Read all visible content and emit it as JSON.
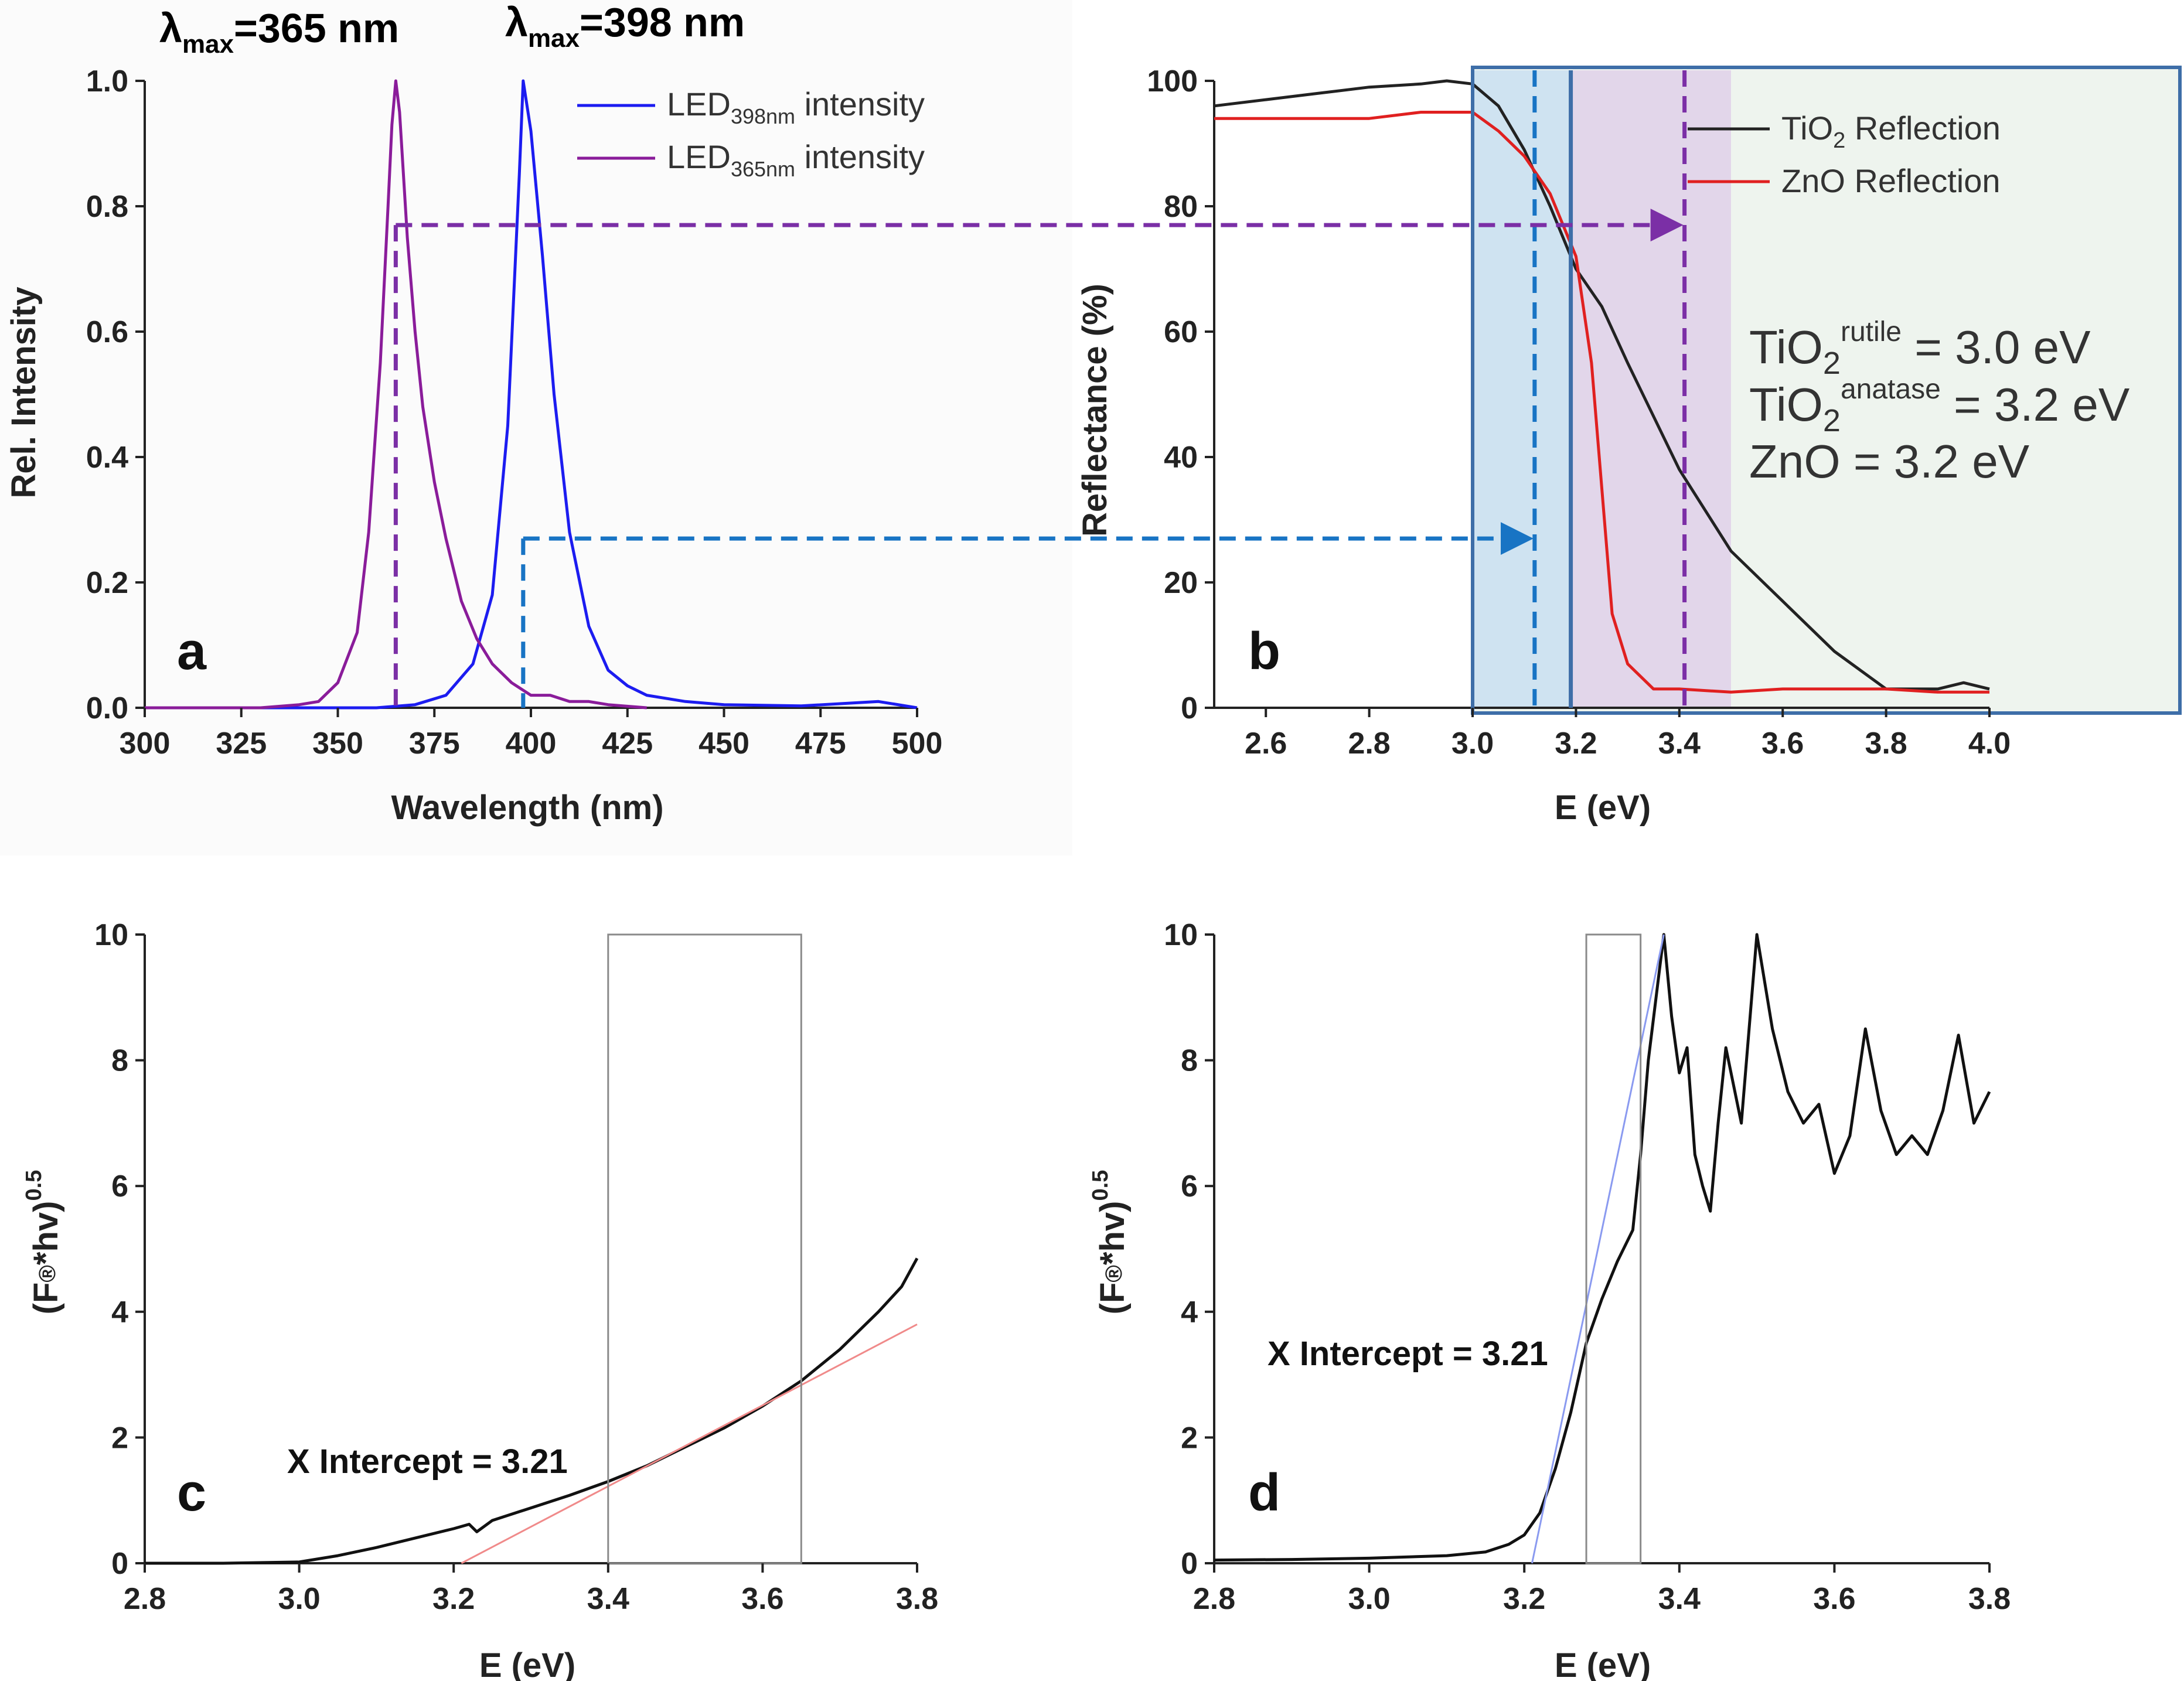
{
  "header": {
    "lambda_violet": "λmax=365 nm",
    "lambda_violet_a": "λ",
    "lambda_violet_b": "max",
    "lambda_violet_c": "=365 nm",
    "lambda_blue_a": "λ",
    "lambda_blue_b": "max",
    "lambda_blue_c": "=398 nm"
  },
  "colors": {
    "violet": "#7b2fa6",
    "blue": "#1874c4",
    "led398": "#1c1cf0",
    "led365": "#8a1c9a",
    "tio2": "#222222",
    "zno": "#e02020",
    "fit_c": "#f08a8a",
    "fit_d": "#8a9af0",
    "band_blue": "#cfe3f1",
    "band_violet": "#e2d6ea",
    "box_bg": "#eef4ee",
    "box_frame": "#3e6ea8"
  },
  "chart_data": [
    {
      "panel": "a",
      "type": "line",
      "xlabel": "Wavelength (nm)",
      "ylabel": "Rel. Intensity",
      "xlim": [
        300,
        500
      ],
      "ylim": [
        0.0,
        1.0
      ],
      "xticks": [
        "300",
        "325",
        "350",
        "375",
        "400",
        "425",
        "450",
        "475",
        "500"
      ],
      "yticks": [
        "0.0",
        "0.2",
        "0.4",
        "0.6",
        "0.8",
        "1.0"
      ],
      "legend": {
        "led398_a": "LED",
        "led398_b": "398nm",
        "led398_c": " intensity",
        "led365_a": "LED",
        "led365_b": "365nm",
        "led365_c": " intensity"
      },
      "series": [
        {
          "name": "LED398nm intensity",
          "color": "#1c1cf0",
          "x": [
            300,
            360,
            370,
            378,
            385,
            390,
            394,
            397,
            398,
            400,
            403,
            406,
            410,
            415,
            420,
            425,
            430,
            440,
            450,
            470,
            490,
            500
          ],
          "y": [
            0.0,
            0.0,
            0.005,
            0.02,
            0.07,
            0.18,
            0.45,
            0.85,
            1.0,
            0.92,
            0.72,
            0.5,
            0.28,
            0.13,
            0.06,
            0.035,
            0.02,
            0.01,
            0.005,
            0.003,
            0.01,
            0.0
          ]
        },
        {
          "name": "LED365nm intensity",
          "color": "#8a1c9a",
          "x": [
            300,
            330,
            340,
            345,
            350,
            355,
            358,
            361,
            363,
            364,
            365,
            366,
            368,
            370,
            372,
            375,
            378,
            382,
            386,
            390,
            395,
            400,
            405,
            410,
            415,
            420,
            430
          ],
          "y": [
            0.0,
            0.0,
            0.005,
            0.01,
            0.04,
            0.12,
            0.28,
            0.55,
            0.8,
            0.93,
            1.0,
            0.95,
            0.75,
            0.6,
            0.48,
            0.36,
            0.27,
            0.17,
            0.11,
            0.07,
            0.04,
            0.02,
            0.02,
            0.01,
            0.01,
            0.005,
            0.0
          ]
        }
      ],
      "markers": [
        {
          "x": 365,
          "y_top": 0.77,
          "color": "#7b2fa6"
        },
        {
          "x": 398,
          "y_top": 0.27,
          "color": "#1874c4"
        }
      ]
    },
    {
      "panel": "b",
      "type": "line",
      "xlabel": "E (eV)",
      "ylabel": "Reflectance (%)",
      "xlim": [
        2.5,
        4.0
      ],
      "ylim": [
        0,
        100
      ],
      "xticks": [
        "2.6",
        "2.8",
        "3.0",
        "3.2",
        "3.4",
        "3.6",
        "3.8",
        "4.0"
      ],
      "yticks": [
        "0",
        "20",
        "40",
        "60",
        "80",
        "100"
      ],
      "legend": {
        "tio2_a": "TiO",
        "tio2_b": "2",
        "tio2_c": " Reflection",
        "zno": "ZnO Reflection"
      },
      "band_gaps": {
        "rutile_a": "TiO",
        "rutile_b": "2",
        "rutile_c": "rutile",
        "rutile_d": " = 3.0 eV",
        "anatase_a": "TiO",
        "anatase_b": "2",
        "anatase_c": "anatase",
        "anatase_d": " = 3.2 eV",
        "zno": "ZnO = 3.2 eV"
      },
      "series": [
        {
          "name": "TiO2 Reflection",
          "color": "#222222",
          "x": [
            2.5,
            2.6,
            2.7,
            2.8,
            2.9,
            2.95,
            3.0,
            3.05,
            3.1,
            3.15,
            3.2,
            3.25,
            3.3,
            3.4,
            3.5,
            3.6,
            3.7,
            3.8,
            3.85,
            3.9,
            3.95,
            4.0
          ],
          "y": [
            96,
            97,
            98,
            99,
            99.5,
            100,
            99.5,
            96,
            89,
            80,
            70,
            64,
            55,
            38,
            25,
            17,
            9,
            3,
            3,
            3,
            4,
            3
          ]
        },
        {
          "name": "ZnO Reflection",
          "color": "#e02020",
          "x": [
            2.5,
            2.6,
            2.7,
            2.8,
            2.9,
            3.0,
            3.05,
            3.1,
            3.15,
            3.2,
            3.23,
            3.25,
            3.27,
            3.3,
            3.35,
            3.4,
            3.5,
            3.6,
            3.7,
            3.8,
            3.9,
            4.0
          ],
          "y": [
            94,
            94,
            94,
            94,
            95,
            95,
            92,
            88,
            82,
            72,
            55,
            35,
            15,
            7,
            3,
            3,
            2.5,
            3,
            3,
            3,
            2.5,
            2.5
          ]
        }
      ],
      "markers": [
        {
          "x": 3.12,
          "color": "#1874c4",
          "style": "dashed"
        },
        {
          "x": 3.19,
          "color": "#3e6ea8",
          "style": "solid"
        },
        {
          "x": 3.41,
          "color": "#7b2fa6",
          "style": "dashed"
        }
      ],
      "bands": [
        {
          "from": 3.0,
          "to": 3.19,
          "color": "#cfe3f1"
        },
        {
          "from": 3.19,
          "to": 3.5,
          "color": "#e2d6ea"
        }
      ]
    },
    {
      "panel": "c",
      "type": "line",
      "xlabel": "E (eV)",
      "ylabel": "(F®*hv)0.5",
      "ylabel_a": "(F",
      "ylabel_b": "®",
      "ylabel_c": "*hv)",
      "ylabel_d": "0.5",
      "xlim": [
        2.8,
        3.8
      ],
      "ylim": [
        0,
        10
      ],
      "xticks": [
        "2.8",
        "3.0",
        "3.2",
        "3.4",
        "3.6",
        "3.8"
      ],
      "yticks": [
        "0",
        "2",
        "4",
        "6",
        "8",
        "10"
      ],
      "annotation": "X Intercept = 3.21",
      "fit_window": [
        3.4,
        3.65
      ],
      "series": [
        {
          "name": "",
          "color": "#111111",
          "x": [
            2.8,
            2.9,
            3.0,
            3.05,
            3.1,
            3.15,
            3.2,
            3.22,
            3.23,
            3.25,
            3.3,
            3.35,
            3.4,
            3.45,
            3.5,
            3.55,
            3.6,
            3.65,
            3.7,
            3.75,
            3.78,
            3.8
          ],
          "y": [
            0.0,
            0.0,
            0.02,
            0.12,
            0.25,
            0.4,
            0.55,
            0.62,
            0.5,
            0.68,
            0.88,
            1.08,
            1.3,
            1.55,
            1.85,
            2.15,
            2.5,
            2.9,
            3.4,
            4.0,
            4.4,
            4.85
          ]
        },
        {
          "name": "",
          "color": "#f08a8a",
          "x": [
            3.21,
            3.8
          ],
          "y": [
            0.0,
            3.8
          ]
        }
      ]
    },
    {
      "panel": "d",
      "type": "line",
      "xlabel": "E (eV)",
      "ylabel": "(F®*hv)0.5",
      "ylabel_a": "(F",
      "ylabel_b": "®",
      "ylabel_c": "*hv)",
      "ylabel_d": "0.5",
      "xlim": [
        2.8,
        3.8
      ],
      "ylim": [
        0,
        10
      ],
      "xticks": [
        "2.8",
        "3.0",
        "3.2",
        "3.4",
        "3.6",
        "3.8"
      ],
      "yticks": [
        "0",
        "2",
        "4",
        "6",
        "8",
        "10"
      ],
      "annotation": "X Intercept = 3.21",
      "fit_window": [
        3.28,
        3.35
      ],
      "series": [
        {
          "name": "",
          "color": "#111111",
          "x": [
            2.8,
            2.9,
            3.0,
            3.1,
            3.15,
            3.18,
            3.2,
            3.22,
            3.24,
            3.26,
            3.28,
            3.3,
            3.32,
            3.34,
            3.35,
            3.36,
            3.37,
            3.38,
            3.39,
            3.4,
            3.41,
            3.42,
            3.43,
            3.44,
            3.45,
            3.46,
            3.48,
            3.5,
            3.52,
            3.54,
            3.56,
            3.58,
            3.6,
            3.62,
            3.64,
            3.66,
            3.68,
            3.7,
            3.72,
            3.74,
            3.76,
            3.78,
            3.8
          ],
          "y": [
            0.05,
            0.06,
            0.08,
            0.12,
            0.18,
            0.3,
            0.45,
            0.8,
            1.5,
            2.4,
            3.5,
            4.2,
            4.8,
            5.3,
            6.5,
            8.0,
            9.0,
            10.0,
            8.7,
            7.8,
            8.2,
            6.5,
            6.0,
            5.6,
            7.0,
            8.2,
            7.0,
            10.0,
            8.5,
            7.5,
            7.0,
            7.3,
            6.2,
            6.8,
            8.5,
            7.2,
            6.5,
            6.8,
            6.5,
            7.2,
            8.4,
            7.0,
            7.5
          ]
        },
        {
          "name": "",
          "color": "#8a9af0",
          "x": [
            3.21,
            3.38
          ],
          "y": [
            0.0,
            10.0
          ]
        }
      ]
    }
  ]
}
